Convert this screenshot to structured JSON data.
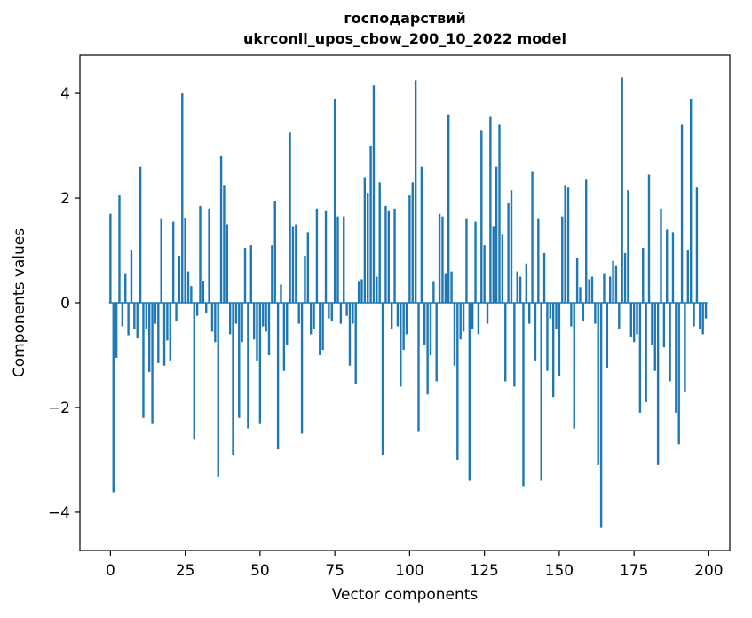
{
  "figure": {
    "background": "#ffffff"
  },
  "chart_data": {
    "type": "bar",
    "title_line1": "господарствий",
    "title_line2": "ukrconll_upos_cbow_200_10_2022 model",
    "xlabel": "Vector components",
    "ylabel": "Components values",
    "bar_color": "#1f77b4",
    "axis_color": "#000000",
    "grid": false,
    "legend": null,
    "xlim": [
      -10.2,
      207
    ],
    "ylim": [
      -4.73,
      4.73
    ],
    "x_ticks": [
      {
        "v": 0,
        "label": "0"
      },
      {
        "v": 25,
        "label": "25"
      },
      {
        "v": 50,
        "label": "50"
      },
      {
        "v": 75,
        "label": "75"
      },
      {
        "v": 100,
        "label": "100"
      },
      {
        "v": 125,
        "label": "125"
      },
      {
        "v": 150,
        "label": "150"
      },
      {
        "v": 175,
        "label": "175"
      },
      {
        "v": 200,
        "label": "200"
      }
    ],
    "y_ticks": [
      {
        "v": -4,
        "label": "−4"
      },
      {
        "v": -2,
        "label": "−2"
      },
      {
        "v": 0,
        "label": "0"
      },
      {
        "v": 2,
        "label": "2"
      },
      {
        "v": 4,
        "label": "4"
      }
    ],
    "values": [
      1.7,
      -3.62,
      -1.05,
      2.05,
      -0.45,
      0.55,
      -0.62,
      1.0,
      -0.5,
      -0.68,
      2.6,
      -2.2,
      -0.5,
      -1.32,
      -2.3,
      -0.4,
      -1.15,
      1.6,
      -1.2,
      -0.72,
      -1.1,
      1.55,
      -0.35,
      0.9,
      4.0,
      1.62,
      0.6,
      0.32,
      -2.6,
      -0.25,
      1.85,
      0.42,
      -0.2,
      1.8,
      -0.55,
      -0.75,
      -3.32,
      2.8,
      2.25,
      1.5,
      -0.6,
      -2.9,
      -0.4,
      -2.2,
      -0.75,
      1.05,
      -2.4,
      1.1,
      -0.7,
      -1.1,
      -2.3,
      -0.45,
      -0.55,
      -1.0,
      1.1,
      1.95,
      -2.8,
      0.35,
      -1.3,
      -0.8,
      3.25,
      1.45,
      1.5,
      -0.4,
      -2.5,
      0.9,
      1.35,
      -0.6,
      -0.5,
      1.8,
      -1.0,
      -0.9,
      1.75,
      -0.3,
      -0.35,
      3.9,
      1.65,
      -0.4,
      1.65,
      -0.25,
      -1.2,
      -0.4,
      -1.55,
      0.4,
      0.45,
      2.4,
      2.1,
      3.0,
      4.15,
      0.5,
      2.3,
      -2.9,
      1.85,
      1.75,
      -0.5,
      1.8,
      -0.45,
      -1.6,
      -0.9,
      -0.6,
      2.05,
      2.3,
      4.25,
      -2.45,
      2.6,
      -0.8,
      -1.75,
      -1.0,
      0.4,
      -1.5,
      1.7,
      1.65,
      0.55,
      3.6,
      0.6,
      -1.2,
      -3.0,
      -0.7,
      -0.55,
      1.6,
      -3.4,
      -0.5,
      1.55,
      -0.6,
      3.3,
      1.1,
      -0.4,
      3.55,
      1.45,
      2.6,
      3.4,
      1.3,
      -1.5,
      1.9,
      2.15,
      -1.6,
      0.6,
      0.5,
      -3.5,
      0.75,
      -0.4,
      2.5,
      -1.1,
      1.6,
      -3.4,
      0.95,
      -1.3,
      -0.3,
      -1.8,
      -0.5,
      -1.4,
      1.65,
      2.25,
      2.2,
      -0.45,
      -2.4,
      0.85,
      0.3,
      -0.35,
      2.35,
      0.45,
      0.5,
      -0.4,
      -3.1,
      -4.3,
      0.55,
      -1.25,
      0.5,
      0.8,
      0.7,
      -0.5,
      4.3,
      0.95,
      2.15,
      -0.65,
      -0.75,
      -0.6,
      -2.1,
      1.05,
      -1.9,
      2.45,
      -0.8,
      -1.3,
      -3.1,
      1.8,
      -0.85,
      1.4,
      -1.5,
      1.35,
      -2.1,
      -2.7,
      3.4,
      -1.7,
      1.0,
      3.9,
      -0.45,
      2.2,
      -0.5,
      -0.6,
      -0.3
    ]
  }
}
